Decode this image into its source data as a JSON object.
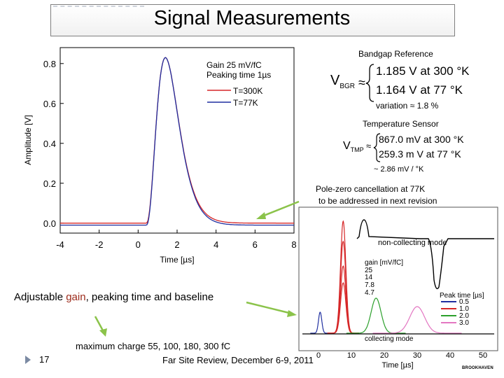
{
  "slide": {
    "title": "Signal Measurements",
    "slide_number": "17",
    "footer": "Far Site Review, December 6-9, 2011",
    "logo_text": "BROOKHAVEN"
  },
  "notes": {
    "adjustable_pre": "Adjustable ",
    "adjustable_gain": "gain",
    "adjustable_post": ", peaking time and baseline",
    "max_charge": "maximum charge 55, 100, 180, 300 fC",
    "pole_zero_line1": "Pole-zero cancellation at 77K",
    "pole_zero_line2": "to be addressed in next revision"
  },
  "bandgap": {
    "heading": "Bandgap Reference",
    "symbol": "V",
    "subscript": "BGR",
    "approx": "≈",
    "line1": "1.185 V   at  300 °K",
    "line2": "1.164 V   at  77 °K",
    "variation": "variation ≈ 1.8 %"
  },
  "temperature": {
    "heading": "Temperature Sensor",
    "symbol": "V",
    "subscript": "TMP",
    "approx": "≈",
    "line1": "867.0 mV  at  300 °K",
    "line2": "259.3 m V  at  77 °K",
    "slope": "~ 2.86 mV / °K"
  },
  "chart_data": [
    {
      "type": "line",
      "title": "",
      "xlabel": "Time [µs]",
      "ylabel": "Amplitude [V]",
      "xlim": [
        -4,
        8
      ],
      "ylim": [
        -0.05,
        0.88
      ],
      "x_ticks": [
        -4,
        -2,
        0,
        2,
        4,
        6,
        8
      ],
      "x_tick_labels": [
        "-4",
        "-2",
        "0",
        "2",
        "4",
        "6",
        "8"
      ],
      "y_ticks": [
        0.0,
        0.2,
        0.4,
        0.6,
        0.8
      ],
      "y_tick_labels": [
        "0.0",
        "0.2",
        "0.4",
        "0.6",
        "0.8"
      ],
      "annotation_line1": "Gain 25 mV/fC",
      "annotation_line2": "Peaking time 1µs",
      "peak_time": 1.4,
      "series": [
        {
          "name": "T=300K",
          "color": "#d62728",
          "peak": 0.83,
          "baseline": 0.0
        },
        {
          "name": "T=77K",
          "color": "#1f2fa0",
          "peak": 0.84,
          "baseline": -0.01
        }
      ]
    },
    {
      "type": "line",
      "title": "",
      "xlabel": "Time [µs]",
      "ylabel": "",
      "xlim": [
        0,
        50
      ],
      "x_ticks": [
        0,
        10,
        20,
        30,
        40,
        50
      ],
      "x_tick_labels": [
        "0",
        "10",
        "20",
        "30",
        "40",
        "50"
      ],
      "mode_top": "non-collecting mode",
      "mode_bottom": "collecting mode",
      "gain_legend_title": "gain [mV/fC]",
      "gains": [
        "25",
        "14",
        "7.8",
        "4.7"
      ],
      "peak_legend_title": "Peak time [µs]",
      "peak_series": [
        {
          "name": "0.5",
          "color": "#1f2fa0",
          "center": 0.5
        },
        {
          "name": "1.0",
          "color": "#d62728",
          "center": 7.5
        },
        {
          "name": "2.0",
          "color": "#2ca02c",
          "center": 17.5
        },
        {
          "name": "3.0",
          "color": "#e377c2",
          "center": 30.0
        }
      ]
    }
  ]
}
